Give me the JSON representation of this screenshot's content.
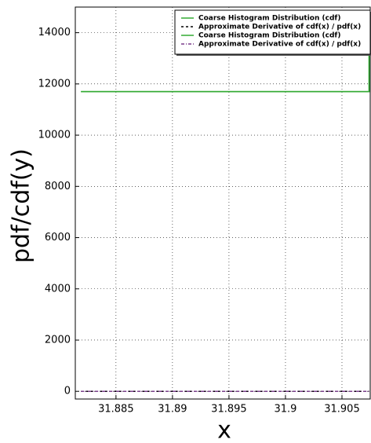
{
  "chart_data": {
    "type": "line",
    "xlabel": "x",
    "ylabel": "pdf/cdf(y)",
    "xlim": [
      31.8814,
      31.9075
    ],
    "ylim": [
      -300,
      15000
    ],
    "xticks": [
      31.885,
      31.89,
      31.895,
      31.9,
      31.905
    ],
    "yticks": [
      0,
      2000,
      4000,
      6000,
      8000,
      10000,
      12000,
      14000
    ],
    "grid": true,
    "legend": "upper right",
    "series": [
      {
        "name": "Coarse Histogram Distribution (cdf)",
        "color": "#33aa33",
        "style": "solid",
        "x": [
          31.8819,
          31.9074,
          31.9074
        ],
        "y": [
          11700,
          11700,
          13150
        ]
      },
      {
        "name": "Approximate Derivative of cdf(x) / pdf(x)",
        "color": "#000000",
        "style": "dashed",
        "x": [
          31.8819,
          31.9074
        ],
        "y": [
          0,
          0
        ]
      },
      {
        "name": "Coarse Histogram Distribution (cdf)",
        "color": "#33aa33",
        "style": "solid",
        "x": [
          31.8819,
          31.9074,
          31.9074
        ],
        "y": [
          11700,
          11700,
          13150
        ]
      },
      {
        "name": "Approximate Derivative of cdf(x) / pdf(x)",
        "color": "#7a3d8c",
        "style": "dashdot",
        "x": [
          31.8819,
          31.9074
        ],
        "y": [
          0,
          0
        ]
      }
    ]
  }
}
